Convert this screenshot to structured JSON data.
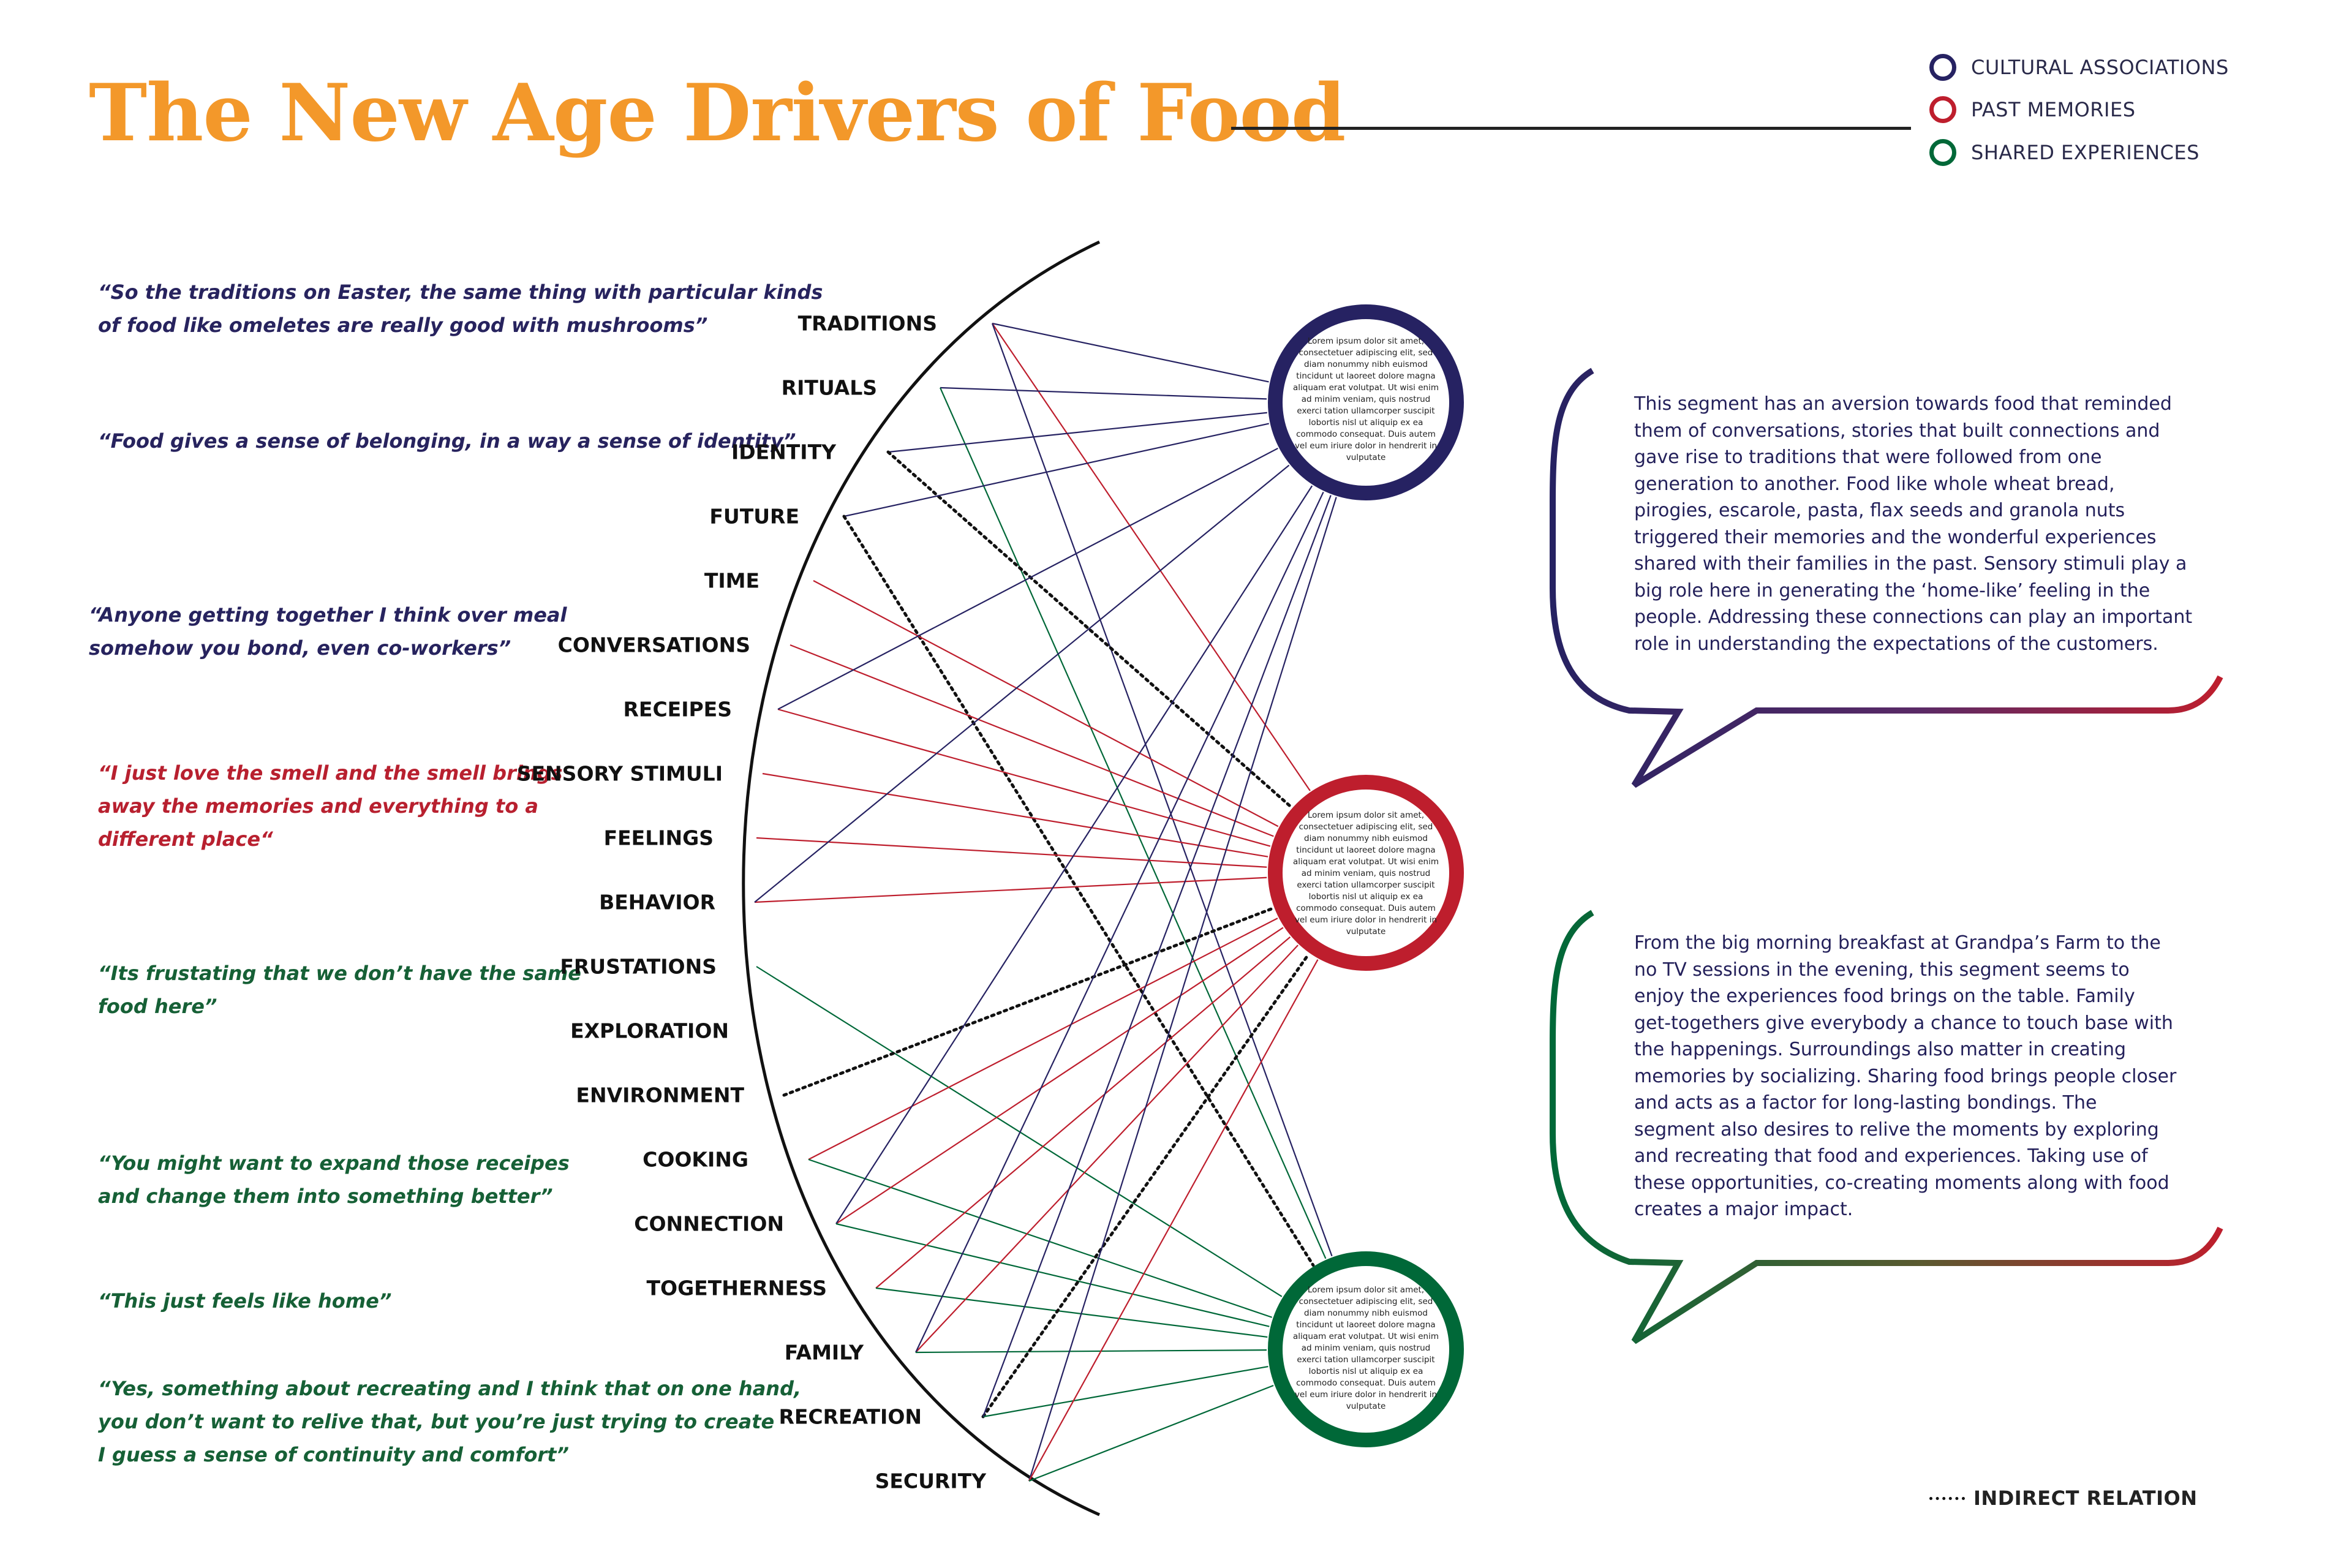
{
  "title": "The New Age Drivers of Food",
  "legend": {
    "cultural": {
      "label": "CULTURAL ASSOCIATIONS",
      "color": "#262262"
    },
    "memories": {
      "label": "PAST MEMORIES",
      "color": "#be1e2d"
    },
    "shared": {
      "label": "SHARED EXPERIENCES",
      "color": "#006838"
    }
  },
  "indirect_label": "INDIRECT RELATION",
  "quotes": [
    {
      "lines": [
        "“So the traditions on Easter, the same thing with particular kinds",
        "of food like omeletes are really good with mushrooms”"
      ],
      "color": "blue"
    },
    {
      "lines": [
        "“Food gives a sense of belonging, in a way a sense of identity”"
      ],
      "color": "blue"
    },
    {
      "lines": [
        "“Anyone getting together I think over meal",
        "somehow you bond, even co-workers”"
      ],
      "color": "blue"
    },
    {
      "lines": [
        "“I just love the smell and the smell brings",
        "away the memories and everything to a",
        "different place“"
      ],
      "color": "red"
    },
    {
      "lines": [
        "“Its frustating that we don’t have the same",
        "food here”"
      ],
      "color": "green"
    },
    {
      "lines": [
        "“You might want to expand those receipes",
        "and change them into something better”"
      ],
      "color": "green"
    },
    {
      "lines": [
        "“This just feels like home”"
      ],
      "color": "green"
    },
    {
      "lines": [
        "“Yes, something about recreating and I think that on one hand,",
        "you don’t want to relive that, but you’re just trying to create",
        "I guess a sense of continuity and comfort”"
      ],
      "color": "green"
    }
  ],
  "nodes": [
    "TRADITIONS",
    "RITUALS",
    "IDENTITY",
    "FUTURE",
    "TIME",
    "CONVERSATIONS",
    "RECEIPES",
    "SENSORY STIMULI",
    "FEELINGS",
    "BEHAVIOR",
    "FRUSTATIONS",
    "EXPLORATION",
    "ENVIRONMENT",
    "COOKING",
    "CONNECTION",
    "TOGETHERNESS",
    "FAMILY",
    "RECREATION",
    "SECURITY"
  ],
  "circles": {
    "cultural": {
      "color": "#262262",
      "text": "Lorem ipsum dolor sit amet, consectetuer adipiscing elit, sed diam nonummy nibh euismod tincidunt ut laoreet dolore magna aliquam erat volutpat. Ut wisi enim ad minim veniam, quis nostrud exerci tation ullamcorper suscipit lobortis nisl ut aliquip ex ea commodo consequat. Duis autem vel eum iriure dolor in hendrerit in vulputate"
    },
    "memories": {
      "color": "#be1e2d",
      "text": "Lorem ipsum dolor sit amet, consectetuer adipiscing elit, sed diam nonummy nibh euismod tincidunt ut laoreet dolore magna aliquam erat volutpat. Ut wisi enim ad minim veniam, quis nostrud exerci tation ullamcorper suscipit lobortis nisl ut aliquip ex ea commodo consequat. Duis autem vel eum iriure dolor in hendrerit in vulputate"
    },
    "shared": {
      "color": "#006838",
      "text": "Lorem ipsum dolor sit amet, consectetuer adipiscing elit, sed diam nonummy nibh euismod tincidunt ut laoreet dolore magna aliquam erat volutpat. Ut wisi enim ad minim veniam, quis nostrud exerci tation ullamcorper suscipit lobortis nisl ut aliquip ex ea commodo consequat. Duis autem vel eum iriure dolor in hendrerit in vulputate"
    }
  },
  "paragraphs": {
    "top": [
      "This segment has an aversion towards food that reminded",
      "them of conversations, stories that built connections and",
      "gave rise to traditions that were followed from one",
      "generation to another. Food like whole wheat bread,",
      "pirogies, escarole, pasta, flax seeds and granola nuts",
      "triggered their memories and the wonderful experiences",
      "shared with their families in the past. Sensory stimuli play a",
      "big role here in generating the ‘home-like’ feeling in the",
      "people. Addressing these connections can play an important",
      "role in understanding the expectations of the customers."
    ],
    "bottom": [
      "From the big morning breakfast at Grandpa’s Farm to the",
      "no TV sessions in the evening, this segment seems to",
      "enjoy the experiences food brings on the table. Family",
      "get-togethers give everybody a chance to touch base with",
      "the happenings. Surroundings also matter in creating",
      "memories by socializing. Sharing food brings people closer",
      "and acts as a factor for long-lasting bondings. The",
      "segment also desires to relive the moments by exploring",
      "and recreating that food and experiences. Taking use of",
      "these opportunities, co-creating moments along with food",
      "creates a major impact."
    ]
  },
  "links": [
    {
      "from": "TRADITIONS",
      "to": "cultural",
      "type": "cultural"
    },
    {
      "from": "TRADITIONS",
      "to": "memories",
      "type": "memories"
    },
    {
      "from": "TRADITIONS",
      "to": "shared",
      "type": "cultural"
    },
    {
      "from": "RITUALS",
      "to": "cultural",
      "type": "cultural"
    },
    {
      "from": "RITUALS",
      "to": "shared",
      "type": "shared"
    },
    {
      "from": "IDENTITY",
      "to": "cultural",
      "type": "cultural"
    },
    {
      "from": "IDENTITY",
      "to": "memories",
      "type": "indirect"
    },
    {
      "from": "FUTURE",
      "to": "cultural",
      "type": "cultural"
    },
    {
      "from": "FUTURE",
      "to": "shared",
      "type": "indirect"
    },
    {
      "from": "TIME",
      "to": "memories",
      "type": "memories"
    },
    {
      "from": "CONVERSATIONS",
      "to": "memories",
      "type": "memories"
    },
    {
      "from": "RECEIPES",
      "to": "memories",
      "type": "memories"
    },
    {
      "from": "RECEIPES",
      "to": "cultural",
      "type": "cultural"
    },
    {
      "from": "SENSORY STIMULI",
      "to": "memories",
      "type": "memories"
    },
    {
      "from": "FEELINGS",
      "to": "memories",
      "type": "memories"
    },
    {
      "from": "BEHAVIOR",
      "to": "memories",
      "type": "memories"
    },
    {
      "from": "BEHAVIOR",
      "to": "cultural",
      "type": "cultural"
    },
    {
      "from": "FRUSTATIONS",
      "to": "shared",
      "type": "shared"
    },
    {
      "from": "ENVIRONMENT",
      "to": "memories",
      "type": "indirect"
    },
    {
      "from": "COOKING",
      "to": "memories",
      "type": "memories"
    },
    {
      "from": "COOKING",
      "to": "shared",
      "type": "shared"
    },
    {
      "from": "CONNECTION",
      "to": "memories",
      "type": "memories"
    },
    {
      "from": "CONNECTION",
      "to": "cultural",
      "type": "cultural"
    },
    {
      "from": "CONNECTION",
      "to": "shared",
      "type": "shared"
    },
    {
      "from": "TOGETHERNESS",
      "to": "memories",
      "type": "memories"
    },
    {
      "from": "TOGETHERNESS",
      "to": "shared",
      "type": "shared"
    },
    {
      "from": "FAMILY",
      "to": "memories",
      "type": "memories"
    },
    {
      "from": "FAMILY",
      "to": "cultural",
      "type": "cultural"
    },
    {
      "from": "FAMILY",
      "to": "shared",
      "type": "shared"
    },
    {
      "from": "RECREATION",
      "to": "memories",
      "type": "indirect"
    },
    {
      "from": "RECREATION",
      "to": "shared",
      "type": "shared"
    },
    {
      "from": "RECREATION",
      "to": "cultural",
      "type": "cultural"
    },
    {
      "from": "SECURITY",
      "to": "cultural",
      "type": "cultural"
    },
    {
      "from": "SECURITY",
      "to": "memories",
      "type": "memories"
    },
    {
      "from": "SECURITY",
      "to": "shared",
      "type": "shared"
    }
  ]
}
